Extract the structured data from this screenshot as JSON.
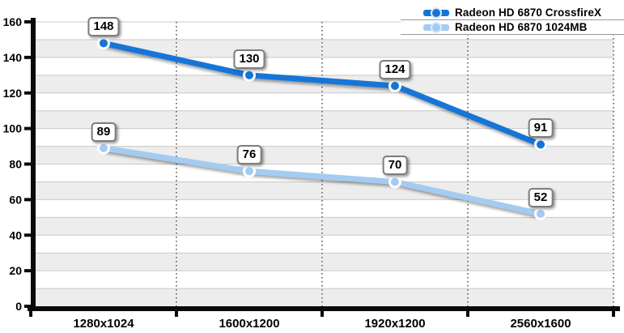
{
  "chart_data": {
    "type": "line",
    "title": "",
    "xlabel": "",
    "ylabel": "",
    "categories": [
      "1280x1024",
      "1600x1200",
      "1920x1200",
      "2560x1600"
    ],
    "series": [
      {
        "name": "Radeon HD 6870 CrossfireX",
        "values": [
          148,
          130,
          124,
          91
        ],
        "color": "#1575D6"
      },
      {
        "name": "Radeon HD 6870 1024MB",
        "values": [
          89,
          76,
          70,
          52
        ],
        "color": "#A4CBF1"
      }
    ],
    "ylim": [
      0,
      160
    ],
    "yticks": [
      0,
      20,
      40,
      60,
      80,
      100,
      120,
      140,
      160
    ],
    "band_step": 10,
    "grid": true,
    "legend_position": "top-right",
    "data_labels": true
  },
  "colors": {
    "background": "#FFFFFF",
    "band_gray": "#EDEDED",
    "gridline": "#C9C9C9",
    "separator_dotted": "#777777",
    "axis": "#0A0A0A",
    "callout_border": "#7D7D7D",
    "callout_bg": "#FFFFFF",
    "text": "#000000",
    "marker_ring": "#FFFFFF"
  }
}
